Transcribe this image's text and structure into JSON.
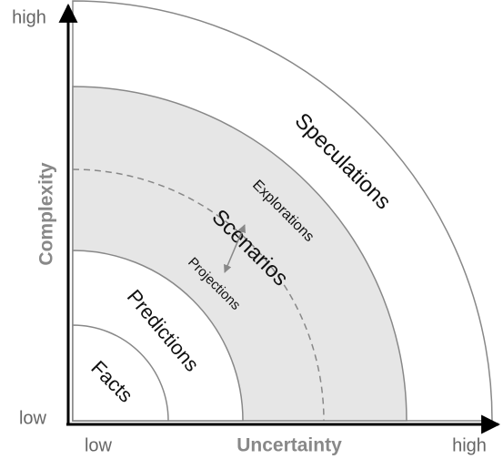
{
  "axes": {
    "y_label": "Complexity",
    "y_low": "low",
    "y_high": "high",
    "x_label": "Uncertainty",
    "x_low": "low",
    "x_high": "high"
  },
  "regions": [
    {
      "label": "Facts"
    },
    {
      "label": "Predictions"
    },
    {
      "label": "Scenarios"
    },
    {
      "label": "Speculations"
    }
  ],
  "scenario_parts": [
    {
      "label": "Explorations"
    },
    {
      "label": "Projections"
    }
  ]
}
